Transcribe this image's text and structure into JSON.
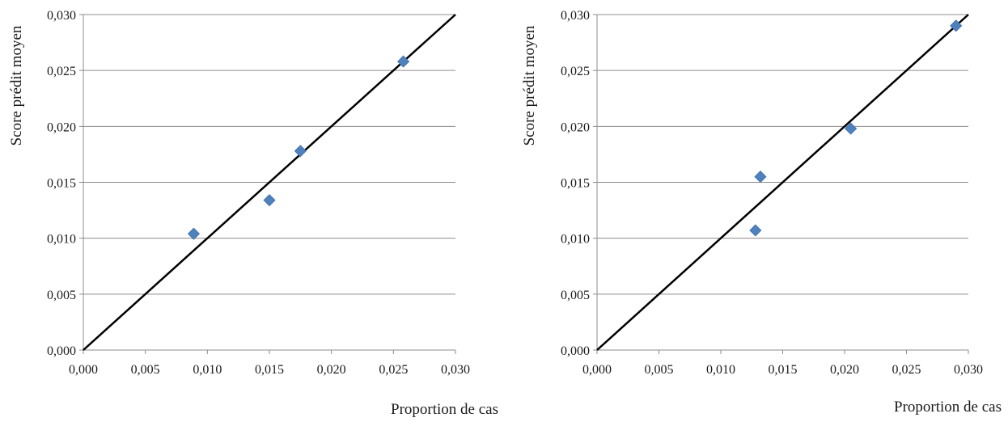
{
  "chart_data": [
    {
      "type": "scatter",
      "xlabel": "Proportion de cas",
      "ylabel": "Score prédit moyen",
      "xlim": [
        0,
        0.03
      ],
      "ylim": [
        0,
        0.03
      ],
      "x_ticks": [
        "0,000",
        "0,005",
        "0,010",
        "0,015",
        "0,020",
        "0,025",
        "0,030"
      ],
      "y_ticks": [
        "0,000",
        "0,005",
        "0,010",
        "0,015",
        "0,020",
        "0,025",
        "0,030"
      ],
      "grid": "horizontal",
      "marker": "diamond",
      "marker_color": "#4f81bd",
      "line_color": "#000000",
      "points": [
        {
          "x": 0.0089,
          "y": 0.0104
        },
        {
          "x": 0.015,
          "y": 0.0134
        },
        {
          "x": 0.0175,
          "y": 0.0178
        },
        {
          "x": 0.0258,
          "y": 0.0258
        }
      ],
      "line": [
        {
          "x": 0.0,
          "y": 0.0
        },
        {
          "x": 0.03,
          "y": 0.03
        }
      ]
    },
    {
      "type": "scatter",
      "xlabel": "Proportion de cas",
      "ylabel": "Score prédit moyen",
      "xlim": [
        0,
        0.03
      ],
      "ylim": [
        0,
        0.03
      ],
      "x_ticks": [
        "0,000",
        "0,005",
        "0,010",
        "0,015",
        "0,020",
        "0,025",
        "0,030"
      ],
      "y_ticks": [
        "0,000",
        "0,005",
        "0,010",
        "0,015",
        "0,020",
        "0,025",
        "0,030"
      ],
      "grid": "horizontal",
      "marker": "diamond",
      "marker_color": "#4f81bd",
      "line_color": "#000000",
      "points": [
        {
          "x": 0.0128,
          "y": 0.0107
        },
        {
          "x": 0.0132,
          "y": 0.0155
        },
        {
          "x": 0.0205,
          "y": 0.0198
        },
        {
          "x": 0.029,
          "y": 0.029
        }
      ],
      "line": [
        {
          "x": 0.0,
          "y": 0.0
        },
        {
          "x": 0.0128,
          "y": 0.0128
        },
        {
          "x": 0.0132,
          "y": 0.0132
        },
        {
          "x": 0.03,
          "y": 0.03
        }
      ]
    }
  ]
}
